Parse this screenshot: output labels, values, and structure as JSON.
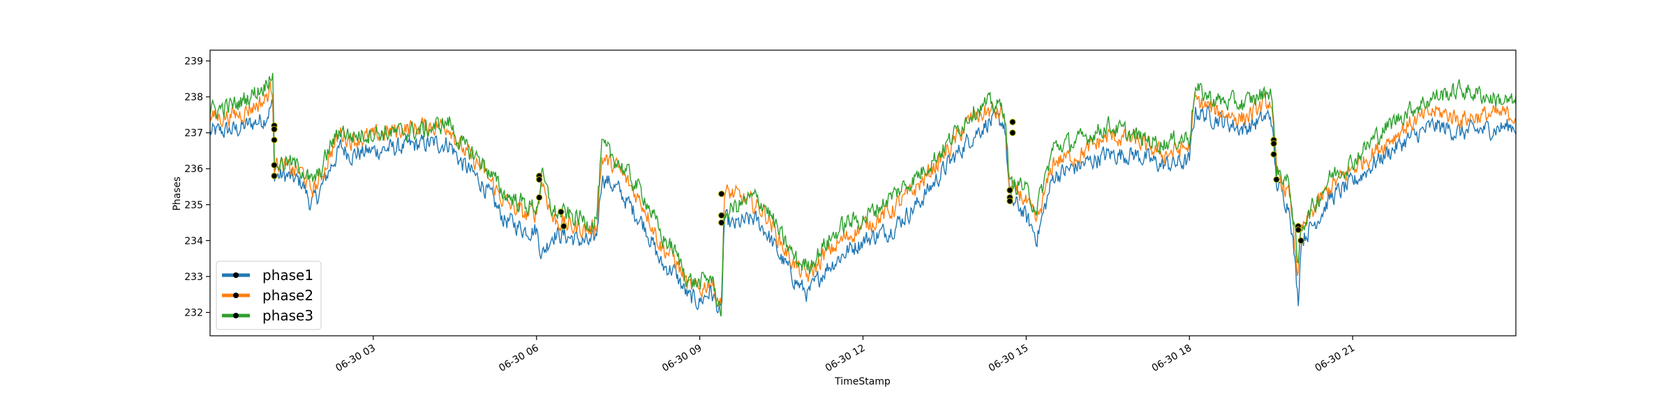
{
  "chart_data": {
    "type": "line",
    "title": "",
    "xlabel": "TimeStamp",
    "ylabel": "Phases",
    "x_range": [
      "06-30 00:00",
      "06-30 24:00"
    ],
    "ylim": [
      231.35,
      239.3
    ],
    "grid": false,
    "legend_position": "lower-left",
    "x_ticks": [
      {
        "label": "06-30 03",
        "hour": 3
      },
      {
        "label": "06-30 06",
        "hour": 6
      },
      {
        "label": "06-30 09",
        "hour": 9
      },
      {
        "label": "06-30 12",
        "hour": 12
      },
      {
        "label": "06-30 15",
        "hour": 15
      },
      {
        "label": "06-30 18",
        "hour": 18
      },
      {
        "label": "06-30 21",
        "hour": 21
      }
    ],
    "y_ticks": [
      {
        "label": "232",
        "value": 232
      },
      {
        "label": "233",
        "value": 233
      },
      {
        "label": "234",
        "value": 234
      },
      {
        "label": "235",
        "value": 235
      },
      {
        "label": "236",
        "value": 236
      },
      {
        "label": "237",
        "value": 237
      },
      {
        "label": "238",
        "value": 238
      },
      {
        "label": "239",
        "value": 239
      }
    ],
    "series": [
      {
        "name": "phase1",
        "color": "#1f77b4",
        "points": [
          [
            0,
            237.0
          ],
          [
            0.5,
            237.1
          ],
          [
            1,
            237.4
          ],
          [
            1.15,
            237.8
          ],
          [
            1.18,
            235.8
          ],
          [
            1.4,
            235.8
          ],
          [
            1.7,
            235.6
          ],
          [
            1.85,
            235.0
          ],
          [
            2,
            235.3
          ],
          [
            2.2,
            236.0
          ],
          [
            2.4,
            236.6
          ],
          [
            2.6,
            236.4
          ],
          [
            3,
            236.5
          ],
          [
            3.5,
            236.6
          ],
          [
            4,
            236.7
          ],
          [
            4.4,
            236.7
          ],
          [
            4.6,
            236.2
          ],
          [
            5,
            235.6
          ],
          [
            5.4,
            234.6
          ],
          [
            5.8,
            234.3
          ],
          [
            6,
            234.3
          ],
          [
            6.1,
            233.6
          ],
          [
            6.3,
            234.2
          ],
          [
            6.6,
            234.1
          ],
          [
            7,
            233.9
          ],
          [
            7.1,
            234.1
          ],
          [
            7.2,
            235.8
          ],
          [
            7.5,
            235.4
          ],
          [
            8,
            234.4
          ],
          [
            8.3,
            233.3
          ],
          [
            8.5,
            233.2
          ],
          [
            8.8,
            232.4
          ],
          [
            9,
            232.3
          ],
          [
            9.2,
            232.6
          ],
          [
            9.4,
            231.9
          ],
          [
            9.45,
            234.6
          ],
          [
            9.6,
            234.4
          ],
          [
            10,
            234.6
          ],
          [
            10.2,
            234.3
          ],
          [
            10.5,
            233.5
          ],
          [
            10.8,
            232.8
          ],
          [
            11,
            232.5
          ],
          [
            11.3,
            233.2
          ],
          [
            11.7,
            233.7
          ],
          [
            12,
            234.0
          ],
          [
            12.5,
            234.3
          ],
          [
            13,
            235.0
          ],
          [
            13.5,
            236.0
          ],
          [
            14,
            236.9
          ],
          [
            14.3,
            237.3
          ],
          [
            14.6,
            237.3
          ],
          [
            14.7,
            235.1
          ],
          [
            14.9,
            234.9
          ],
          [
            15.2,
            234.1
          ],
          [
            15.5,
            235.8
          ],
          [
            16,
            236.1
          ],
          [
            16.5,
            236.4
          ],
          [
            17,
            236.4
          ],
          [
            17.5,
            236.1
          ],
          [
            18,
            236.2
          ],
          [
            18.1,
            237.6
          ],
          [
            18.5,
            237.4
          ],
          [
            19,
            237.1
          ],
          [
            19.5,
            237.5
          ],
          [
            19.6,
            235.6
          ],
          [
            19.85,
            234.9
          ],
          [
            20,
            232.3
          ],
          [
            20.05,
            234.0
          ],
          [
            20.3,
            234.5
          ],
          [
            20.6,
            235.2
          ],
          [
            21,
            235.6
          ],
          [
            21.5,
            236.3
          ],
          [
            22,
            236.8
          ],
          [
            22.5,
            237.2
          ],
          [
            23,
            237.0
          ],
          [
            23.5,
            237.1
          ],
          [
            24,
            237.2
          ]
        ]
      },
      {
        "name": "phase2",
        "color": "#ff7f0e",
        "points": [
          [
            0,
            237.4
          ],
          [
            0.5,
            237.5
          ],
          [
            1,
            237.9
          ],
          [
            1.15,
            238.3
          ],
          [
            1.18,
            236.2
          ],
          [
            1.4,
            236.0
          ],
          [
            1.7,
            235.9
          ],
          [
            1.85,
            235.4
          ],
          [
            2,
            235.6
          ],
          [
            2.2,
            236.4
          ],
          [
            2.4,
            237.0
          ],
          [
            2.6,
            236.8
          ],
          [
            3,
            236.9
          ],
          [
            3.5,
            237.1
          ],
          [
            4,
            237.2
          ],
          [
            4.4,
            237.2
          ],
          [
            4.6,
            236.6
          ],
          [
            5,
            236.0
          ],
          [
            5.4,
            235.1
          ],
          [
            5.8,
            234.7
          ],
          [
            6,
            234.8
          ],
          [
            6.1,
            235.7
          ],
          [
            6.3,
            234.6
          ],
          [
            6.6,
            234.4
          ],
          [
            7,
            234.3
          ],
          [
            7.1,
            234.4
          ],
          [
            7.2,
            236.3
          ],
          [
            7.5,
            236.0
          ],
          [
            8,
            234.9
          ],
          [
            8.3,
            233.8
          ],
          [
            8.5,
            233.6
          ],
          [
            8.8,
            232.7
          ],
          [
            9,
            232.6
          ],
          [
            9.2,
            232.9
          ],
          [
            9.4,
            232.2
          ],
          [
            9.45,
            235.3
          ],
          [
            9.6,
            235.3
          ],
          [
            10,
            235.0
          ],
          [
            10.2,
            234.8
          ],
          [
            10.5,
            233.9
          ],
          [
            10.8,
            233.2
          ],
          [
            11,
            233.0
          ],
          [
            11.3,
            233.6
          ],
          [
            11.7,
            234.1
          ],
          [
            12,
            234.4
          ],
          [
            12.5,
            234.8
          ],
          [
            13,
            235.5
          ],
          [
            13.5,
            236.4
          ],
          [
            14,
            237.4
          ],
          [
            14.3,
            237.6
          ],
          [
            14.6,
            237.5
          ],
          [
            14.7,
            235.4
          ],
          [
            14.9,
            235.3
          ],
          [
            15.2,
            234.5
          ],
          [
            15.5,
            236.2
          ],
          [
            16,
            236.4
          ],
          [
            16.5,
            236.9
          ],
          [
            17,
            236.8
          ],
          [
            17.5,
            236.4
          ],
          [
            18,
            236.6
          ],
          [
            18.1,
            237.9
          ],
          [
            18.5,
            237.6
          ],
          [
            19,
            237.4
          ],
          [
            19.5,
            237.9
          ],
          [
            19.6,
            235.9
          ],
          [
            19.85,
            235.2
          ],
          [
            20,
            233.0
          ],
          [
            20.05,
            234.2
          ],
          [
            20.3,
            234.9
          ],
          [
            20.6,
            235.5
          ],
          [
            21,
            236.0
          ],
          [
            21.5,
            236.6
          ],
          [
            22,
            237.2
          ],
          [
            22.5,
            237.6
          ],
          [
            23,
            237.4
          ],
          [
            23.5,
            237.5
          ],
          [
            24,
            237.5
          ]
        ]
      },
      {
        "name": "phase3",
        "color": "#2ca02c",
        "points": [
          [
            0,
            237.6
          ],
          [
            0.5,
            237.8
          ],
          [
            1,
            238.3
          ],
          [
            1.15,
            238.8
          ],
          [
            1.18,
            236.1
          ],
          [
            1.4,
            236.2
          ],
          [
            1.7,
            236.0
          ],
          [
            1.85,
            235.6
          ],
          [
            2,
            235.8
          ],
          [
            2.2,
            236.6
          ],
          [
            2.4,
            237.1
          ],
          [
            2.6,
            236.9
          ],
          [
            3,
            237.0
          ],
          [
            3.5,
            237.0
          ],
          [
            4,
            237.1
          ],
          [
            4.4,
            237.3
          ],
          [
            4.6,
            236.7
          ],
          [
            5,
            236.2
          ],
          [
            5.4,
            235.3
          ],
          [
            5.8,
            235.0
          ],
          [
            6,
            234.9
          ],
          [
            6.1,
            235.8
          ],
          [
            6.3,
            234.8
          ],
          [
            6.6,
            234.7
          ],
          [
            7,
            234.5
          ],
          [
            7.1,
            234.6
          ],
          [
            7.2,
            236.6
          ],
          [
            7.5,
            236.2
          ],
          [
            8,
            235.2
          ],
          [
            8.3,
            234.1
          ],
          [
            8.5,
            233.8
          ],
          [
            8.8,
            232.9
          ],
          [
            9,
            232.8
          ],
          [
            9.2,
            233.0
          ],
          [
            9.4,
            232.0
          ],
          [
            9.45,
            234.7
          ],
          [
            9.6,
            234.9
          ],
          [
            10,
            235.2
          ],
          [
            10.2,
            235.0
          ],
          [
            10.5,
            234.1
          ],
          [
            10.8,
            233.4
          ],
          [
            11,
            233.3
          ],
          [
            11.3,
            233.9
          ],
          [
            11.7,
            234.5
          ],
          [
            12,
            234.6
          ],
          [
            12.5,
            235.2
          ],
          [
            13,
            235.8
          ],
          [
            13.5,
            236.6
          ],
          [
            14,
            237.6
          ],
          [
            14.3,
            237.8
          ],
          [
            14.6,
            237.7
          ],
          [
            14.7,
            235.5
          ],
          [
            14.9,
            235.6
          ],
          [
            15.2,
            234.9
          ],
          [
            15.5,
            236.6
          ],
          [
            16,
            236.8
          ],
          [
            16.5,
            237.2
          ],
          [
            17,
            236.9
          ],
          [
            17.5,
            236.7
          ],
          [
            18,
            236.9
          ],
          [
            18.1,
            238.2
          ],
          [
            18.5,
            237.9
          ],
          [
            19,
            237.8
          ],
          [
            19.5,
            238.2
          ],
          [
            19.6,
            236.0
          ],
          [
            19.85,
            235.5
          ],
          [
            20,
            233.2
          ],
          [
            20.05,
            234.4
          ],
          [
            20.3,
            235.0
          ],
          [
            20.6,
            235.8
          ],
          [
            21,
            236.2
          ],
          [
            21.5,
            237.0
          ],
          [
            22,
            237.6
          ],
          [
            22.5,
            238.0
          ],
          [
            23,
            238.2
          ],
          [
            23.5,
            238.0
          ],
          [
            24,
            237.8
          ]
        ]
      }
    ],
    "markers": [
      {
        "hour": 1.18,
        "value": 237.2
      },
      {
        "hour": 1.18,
        "value": 237.1
      },
      {
        "hour": 1.18,
        "value": 236.8
      },
      {
        "hour": 1.18,
        "value": 236.1
      },
      {
        "hour": 1.18,
        "value": 235.8
      },
      {
        "hour": 6.05,
        "value": 235.8
      },
      {
        "hour": 6.05,
        "value": 235.7
      },
      {
        "hour": 6.05,
        "value": 235.2
      },
      {
        "hour": 6.45,
        "value": 234.8
      },
      {
        "hour": 6.5,
        "value": 234.4
      },
      {
        "hour": 9.4,
        "value": 235.3
      },
      {
        "hour": 9.4,
        "value": 234.7
      },
      {
        "hour": 9.4,
        "value": 234.5
      },
      {
        "hour": 14.75,
        "value": 237.3
      },
      {
        "hour": 14.75,
        "value": 237.0
      },
      {
        "hour": 14.7,
        "value": 235.4
      },
      {
        "hour": 14.7,
        "value": 235.2
      },
      {
        "hour": 14.7,
        "value": 235.1
      },
      {
        "hour": 19.55,
        "value": 236.8
      },
      {
        "hour": 19.55,
        "value": 236.7
      },
      {
        "hour": 19.55,
        "value": 236.4
      },
      {
        "hour": 19.6,
        "value": 235.7
      },
      {
        "hour": 20.0,
        "value": 234.4
      },
      {
        "hour": 20.0,
        "value": 234.3
      },
      {
        "hour": 20.05,
        "value": 234.0
      }
    ]
  }
}
